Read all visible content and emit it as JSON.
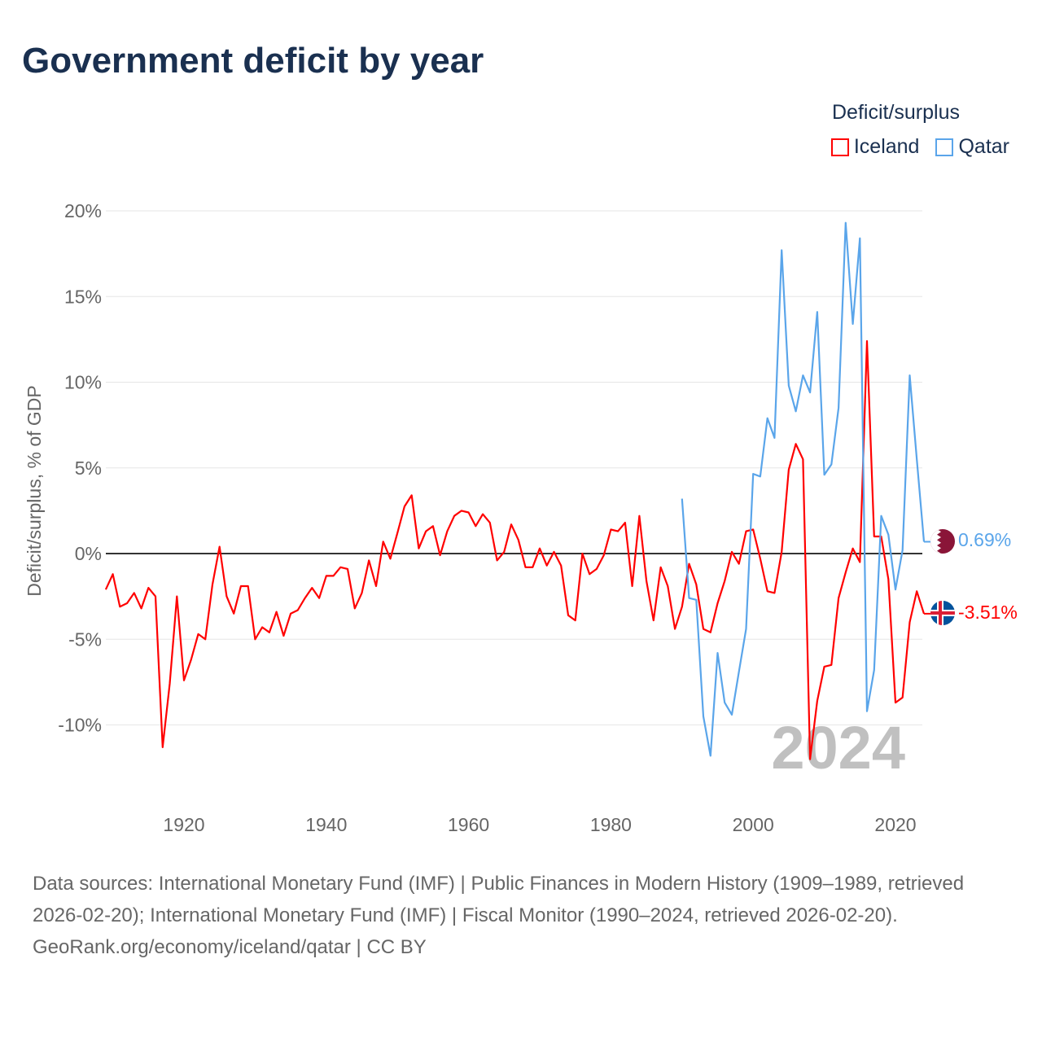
{
  "title": "Government deficit by year",
  "legend": {
    "title": "Deficit/surplus",
    "items": [
      {
        "name": "Iceland",
        "color": "#ff0000"
      },
      {
        "name": "Qatar",
        "color": "#5aa5ea"
      }
    ]
  },
  "year_watermark": "2024",
  "chart_data": {
    "type": "line",
    "title": "Government deficit by year",
    "xlabel": "",
    "ylabel": "Deficit/surplus, % of GDP",
    "xlim": [
      1909,
      2024
    ],
    "ylim": [
      -13,
      21
    ],
    "x_ticks": [
      "1920",
      "1940",
      "1960",
      "1980",
      "2000",
      "2020"
    ],
    "y_ticks": [
      {
        "value": 20,
        "label": "20%"
      },
      {
        "value": 15,
        "label": "15%"
      },
      {
        "value": 10,
        "label": "10%"
      },
      {
        "value": 5,
        "label": "5%"
      },
      {
        "value": 0,
        "label": "0%"
      },
      {
        "value": -5,
        "label": "-5%"
      },
      {
        "value": -10,
        "label": "-10%"
      }
    ],
    "grid": true,
    "legend_position": "top-right",
    "series": [
      {
        "name": "Iceland",
        "color": "#ff0000",
        "start_year": 1909,
        "end_label": "-3.51%",
        "values": [
          -2.1,
          -1.2,
          -3.1,
          -2.9,
          -2.3,
          -3.2,
          -2.0,
          -2.5,
          -11.3,
          -7.6,
          -2.5,
          -7.4,
          -6.2,
          -4.7,
          -5.0,
          -1.8,
          0.4,
          -2.5,
          -3.5,
          -1.9,
          -1.9,
          -5.0,
          -4.3,
          -4.6,
          -3.4,
          -4.8,
          -3.5,
          -3.3,
          -2.6,
          -2.0,
          -2.6,
          -1.3,
          -1.3,
          -0.8,
          -0.9,
          -3.2,
          -2.3,
          -0.4,
          -1.9,
          0.7,
          -0.3,
          1.2,
          2.75,
          3.4,
          0.3,
          1.3,
          1.6,
          -0.1,
          1.3,
          2.2,
          2.5,
          2.4,
          1.6,
          2.3,
          1.8,
          -0.4,
          0.1,
          1.7,
          0.8,
          -0.8,
          -0.8,
          0.3,
          -0.7,
          0.1,
          -0.7,
          -3.6,
          -3.9,
          0.0,
          -1.2,
          -0.9,
          -0.1,
          1.4,
          1.3,
          1.8,
          -1.9,
          2.2,
          -1.6,
          -3.9,
          -0.8,
          -1.9,
          -4.4,
          -3.1,
          -0.6,
          -1.8,
          -4.4,
          -4.6,
          -2.9,
          -1.6,
          0.1,
          -0.6,
          1.3,
          1.4,
          -0.3,
          -2.2,
          -2.3,
          0.1,
          4.9,
          6.4,
          5.5,
          -12.0,
          -8.6,
          -6.6,
          -6.5,
          -2.6,
          -1.1,
          0.3,
          -0.5,
          12.4,
          1.0,
          1.0,
          -1.5,
          -8.7,
          -8.4,
          -4.0,
          -2.2,
          -3.51
        ]
      },
      {
        "name": "Qatar",
        "color": "#5aa5ea",
        "start_year": 1990,
        "end_label": "0.69%",
        "values": [
          3.2,
          -2.6,
          -2.7,
          -9.5,
          -11.8,
          -5.8,
          -8.7,
          -9.4,
          -6.9,
          -4.4,
          4.65,
          4.5,
          7.9,
          6.75,
          17.7,
          9.8,
          8.3,
          10.4,
          9.4,
          14.1,
          4.6,
          5.2,
          8.5,
          19.3,
          13.4,
          18.4,
          -9.2,
          -6.8,
          2.2,
          1.1,
          -2.1,
          0.2,
          10.4,
          5.5,
          0.69
        ]
      }
    ]
  },
  "footer": {
    "sources": "Data sources: International Monetary Fund (IMF) | Public Finances in Modern History (1909–1989, retrieved 2026-02-20); International Monetary Fund (IMF) | Fiscal Monitor (1990–2024, retrieved 2026-02-20).",
    "credit": "GeoRank.org/economy/iceland/qatar | CC BY"
  }
}
